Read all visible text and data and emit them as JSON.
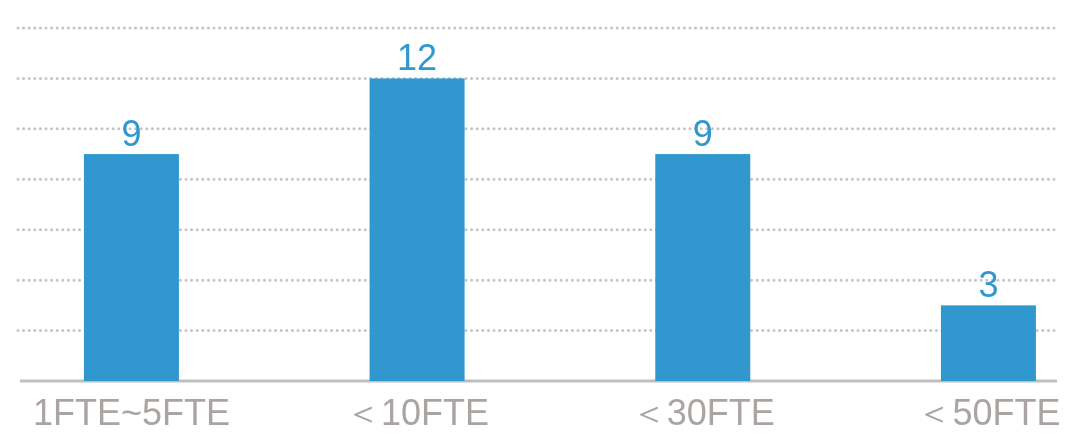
{
  "chart_data": {
    "type": "bar",
    "categories": [
      "1FTE~5FTE",
      "＜10FTE",
      "＜30FTE",
      "＜50FTE"
    ],
    "values": [
      9,
      12,
      9,
      3
    ],
    "color": "#3098cf",
    "ylim": [
      0,
      14
    ],
    "yticks": [
      {
        "value": 0,
        "label": null
      },
      {
        "value": 2,
        "label": null
      },
      {
        "value": 4,
        "label": null
      },
      {
        "value": 6,
        "label": null
      },
      {
        "value": 8,
        "label": null
      },
      {
        "value": 10,
        "label": null
      },
      {
        "value": 12,
        "label": null
      },
      {
        "value": 14,
        "label": null
      }
    ],
    "grid": "y",
    "tick_labels": "x",
    "data_labels": true
  }
}
